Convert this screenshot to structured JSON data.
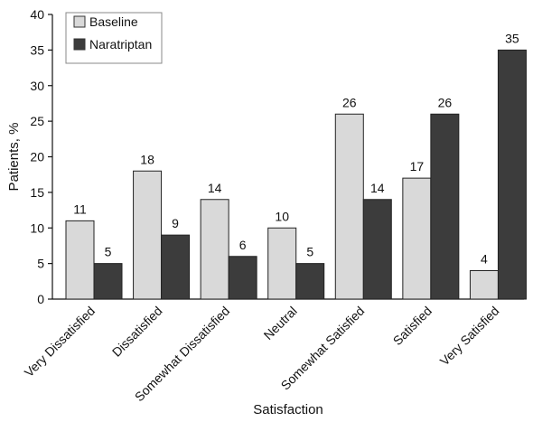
{
  "chart_data": {
    "type": "bar",
    "xlabel": "Satisfaction",
    "ylabel": "Patients, %",
    "ylim": [
      0,
      40
    ],
    "yticks": [
      0,
      5,
      10,
      15,
      20,
      25,
      30,
      35,
      40
    ],
    "grid": false,
    "legend_position": "top-left",
    "categories": [
      "Very Dissatisfied",
      "Dissatisfied",
      "Somewhat Dissatisfied",
      "Neutral",
      "Somewhat Satisfied",
      "Satisfied",
      "Very Satisfied"
    ],
    "series": [
      {
        "name": "Baseline",
        "values": [
          11,
          18,
          14,
          10,
          26,
          17,
          4
        ],
        "color": "#d9d9d9"
      },
      {
        "name": "Naratriptan",
        "values": [
          5,
          9,
          6,
          5,
          14,
          26,
          35
        ],
        "color": "#3c3c3c"
      }
    ]
  }
}
